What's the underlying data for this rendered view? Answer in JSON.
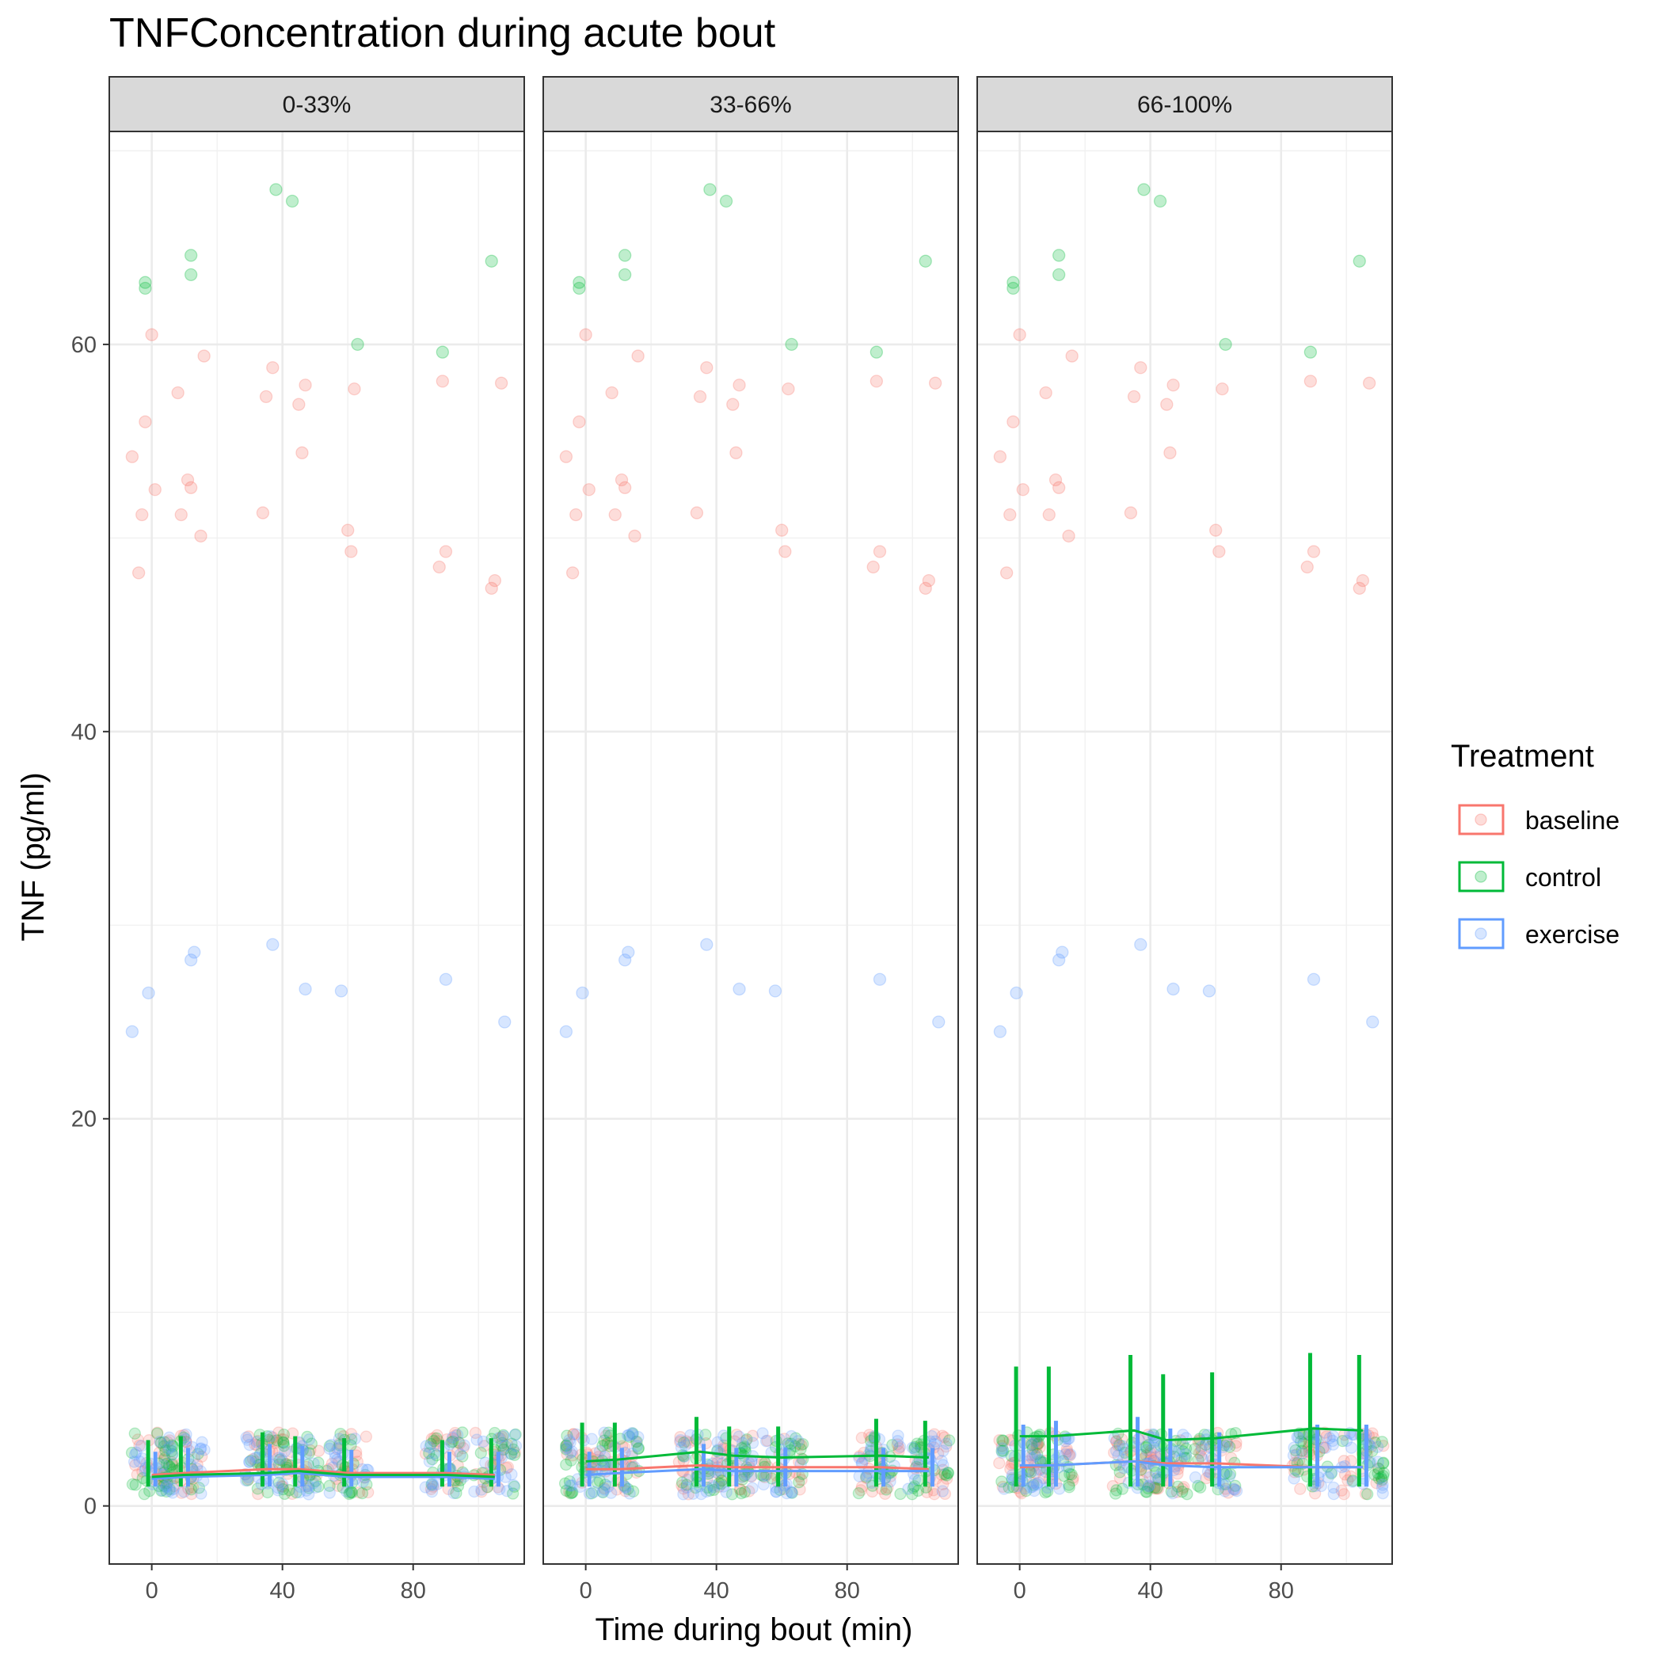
{
  "chart_data": {
    "type": "scatter",
    "title": "TNFConcentration during acute bout",
    "xlabel": "Time during bout (min)",
    "ylabel": "TNF (pg/ml)",
    "xlim": [
      -13,
      114
    ],
    "ylim": [
      -3,
      71
    ],
    "x_ticks": [
      0,
      40,
      80
    ],
    "x_tick_labels": [
      "0",
      "40",
      "80"
    ],
    "y_ticks": [
      0,
      20,
      40,
      60
    ],
    "y_tick_labels": [
      "0",
      "20",
      "40",
      "60"
    ],
    "grid": true,
    "legend": {
      "title": "Treatment",
      "position": "right"
    },
    "panels": [
      "0-33%",
      "33-66%",
      "66-100%"
    ],
    "series": [
      {
        "name": "baseline",
        "color": "#F8766D"
      },
      {
        "name": "control",
        "color": "#00BA38"
      },
      {
        "name": "exercise",
        "color": "#619CFF"
      }
    ],
    "time_points": [
      0,
      10,
      35,
      45,
      60,
      90,
      105
    ],
    "trend_lines": [
      {
        "baseline": [
          1.6,
          1.7,
          1.9,
          1.9,
          1.7,
          1.7,
          1.6
        ],
        "control": [
          1.5,
          1.6,
          1.7,
          1.8,
          1.6,
          1.6,
          1.5
        ],
        "exercise": [
          1.4,
          1.5,
          1.6,
          1.7,
          1.5,
          1.5,
          1.4
        ]
      },
      {
        "baseline": [
          1.9,
          1.9,
          2.1,
          2.0,
          2.0,
          2.0,
          1.9
        ],
        "control": [
          2.3,
          2.4,
          2.8,
          2.6,
          2.5,
          2.6,
          2.5
        ],
        "exercise": [
          1.6,
          1.7,
          1.9,
          1.8,
          1.8,
          1.8,
          1.8
        ]
      },
      {
        "baseline": [
          2.0,
          2.1,
          2.3,
          2.2,
          2.2,
          2.0,
          2.0
        ],
        "control": [
          3.6,
          3.6,
          3.9,
          3.4,
          3.5,
          4.0,
          3.9
        ],
        "exercise": [
          2.1,
          2.1,
          2.3,
          2.1,
          2.0,
          2.0,
          2.0
        ]
      }
    ],
    "bars": [
      {
        "control": [
          3.4,
          3.6,
          3.8,
          3.6,
          3.5,
          3.4,
          3.5
        ],
        "exercise": [
          2.8,
          3.0,
          3.2,
          3.1,
          2.9,
          2.8,
          2.8
        ]
      },
      {
        "control": [
          4.3,
          4.3,
          4.6,
          4.1,
          4.1,
          4.5,
          4.4
        ],
        "exercise": [
          2.8,
          3.0,
          3.2,
          3.0,
          3.0,
          3.0,
          3.0
        ]
      },
      {
        "control": [
          7.2,
          7.2,
          7.8,
          6.8,
          6.9,
          7.9,
          7.8
        ],
        "exercise": [
          4.2,
          4.4,
          4.6,
          4.0,
          3.8,
          4.2,
          4.2
        ]
      }
    ],
    "points": {
      "baseline": [
        [
          -6,
          54.2
        ],
        [
          -4,
          48.2
        ],
        [
          -3,
          51.2
        ],
        [
          -2,
          56.0
        ],
        [
          0,
          60.5
        ],
        [
          1,
          52.5
        ],
        [
          8,
          57.5
        ],
        [
          9,
          51.2
        ],
        [
          11,
          53.0
        ],
        [
          12,
          52.6
        ],
        [
          15,
          50.1
        ],
        [
          16,
          59.4
        ],
        [
          34,
          51.3
        ],
        [
          35,
          57.3
        ],
        [
          37,
          58.8
        ],
        [
          45,
          56.9
        ],
        [
          46,
          54.4
        ],
        [
          47,
          57.9
        ],
        [
          60,
          50.4
        ],
        [
          61,
          49.3
        ],
        [
          62,
          57.7
        ],
        [
          88,
          48.5
        ],
        [
          89,
          58.1
        ],
        [
          90,
          49.3
        ],
        [
          104,
          47.4
        ],
        [
          105,
          47.8
        ],
        [
          107,
          58.0
        ]
      ],
      "control": [
        [
          -2,
          63.2
        ],
        [
          -2,
          62.9
        ],
        [
          12,
          64.6
        ],
        [
          12,
          63.6
        ],
        [
          38,
          68.0
        ],
        [
          43,
          67.4
        ],
        [
          63,
          60.0
        ],
        [
          89,
          59.6
        ],
        [
          104,
          64.3
        ]
      ],
      "exercise": [
        [
          -6,
          24.5
        ],
        [
          -1,
          26.5
        ],
        [
          12,
          28.2
        ],
        [
          13,
          28.6
        ],
        [
          37,
          29.0
        ],
        [
          47,
          26.7
        ],
        [
          58,
          26.6
        ],
        [
          90,
          27.2
        ],
        [
          108,
          25.0
        ]
      ]
    }
  }
}
